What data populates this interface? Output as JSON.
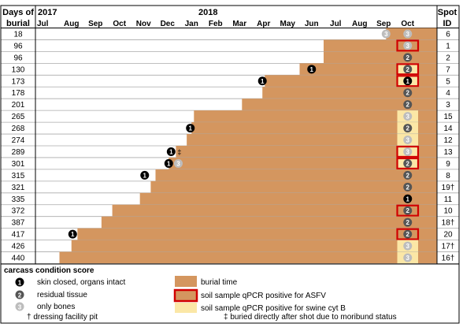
{
  "header": {
    "col1_line1": "Days of",
    "col1_line2": "burial",
    "year1": "2017",
    "year2": "2018",
    "spot_line1": "Spot",
    "spot_line2": "ID"
  },
  "months": [
    "Jul",
    "Aug",
    "Sep",
    "Oct",
    "Nov",
    "Dec",
    "Jan",
    "Feb",
    "Mar",
    "Apr",
    "May",
    "Jun",
    "Jul",
    "Aug",
    "Sep",
    "Oct"
  ],
  "chart_data": {
    "type": "table",
    "rows": [
      {
        "days": "18",
        "start": 14.6,
        "spot": "6",
        "scores": [
          {
            "v": 3,
            "m": 14.6
          }
        ],
        "oct": {
          "v": 3,
          "yellow": false,
          "red": false
        }
      },
      {
        "days": "96",
        "start": 12.0,
        "spot": "1",
        "scores": [],
        "oct": {
          "v": 3,
          "yellow": false,
          "red": true
        }
      },
      {
        "days": "96",
        "start": 12.0,
        "spot": "2",
        "scores": [],
        "oct": {
          "v": 2,
          "yellow": false,
          "red": false
        }
      },
      {
        "days": "130",
        "start": 11.0,
        "spot": "7",
        "scores": [
          {
            "v": 1,
            "m": 11.5
          }
        ],
        "oct": {
          "v": 2,
          "yellow": true,
          "red": true
        }
      },
      {
        "days": "173",
        "start": 9.55,
        "spot": "5",
        "scores": [
          {
            "v": 1,
            "m": 9.45
          }
        ],
        "oct": {
          "v": 1,
          "yellow": true,
          "red": true
        }
      },
      {
        "days": "178",
        "start": 9.45,
        "spot": "4",
        "scores": [],
        "oct": {
          "v": 2,
          "yellow": false,
          "red": false
        }
      },
      {
        "days": "201",
        "start": 8.6,
        "spot": "3",
        "scores": [],
        "oct": {
          "v": 2,
          "yellow": false,
          "red": false
        }
      },
      {
        "days": "265",
        "start": 6.6,
        "spot": "15",
        "scores": [],
        "oct": {
          "v": 3,
          "yellow": true,
          "red": false
        }
      },
      {
        "days": "268",
        "start": 6.5,
        "spot": "14",
        "scores": [
          {
            "v": 1,
            "m": 6.45
          }
        ],
        "oct": {
          "v": 2,
          "yellow": true,
          "red": false
        }
      },
      {
        "days": "274",
        "start": 6.3,
        "spot": "12",
        "scores": [],
        "oct": {
          "v": 3,
          "yellow": true,
          "red": false
        }
      },
      {
        "days": "289",
        "start": 5.85,
        "spot": "13",
        "scores": [
          {
            "v": 1,
            "m": 5.65,
            "mark": "‡"
          }
        ],
        "oct": {
          "v": 3,
          "yellow": true,
          "red": true
        }
      },
      {
        "days": "301",
        "start": 5.55,
        "spot": "9",
        "scores": [
          {
            "v": 1,
            "m": 5.55
          },
          {
            "v": 3,
            "m": 5.95
          }
        ],
        "oct": {
          "v": 2,
          "yellow": true,
          "red": true
        }
      },
      {
        "days": "315",
        "start": 5.0,
        "spot": "8",
        "scores": [
          {
            "v": 1,
            "m": 4.55
          }
        ],
        "oct": {
          "v": 2,
          "yellow": false,
          "red": false
        }
      },
      {
        "days": "321",
        "start": 4.8,
        "spot": "19†",
        "scores": [],
        "oct": {
          "v": 2,
          "yellow": false,
          "red": false
        }
      },
      {
        "days": "335",
        "start": 4.35,
        "spot": "11",
        "scores": [],
        "oct": {
          "v": 1,
          "yellow": false,
          "red": false
        }
      },
      {
        "days": "372",
        "start": 3.2,
        "spot": "10",
        "scores": [],
        "oct": {
          "v": 2,
          "yellow": false,
          "red": true
        }
      },
      {
        "days": "387",
        "start": 2.75,
        "spot": "18†",
        "scores": [],
        "oct": {
          "v": 2,
          "yellow": false,
          "red": false
        }
      },
      {
        "days": "417",
        "start": 1.75,
        "spot": "20",
        "scores": [
          {
            "v": 1,
            "m": 1.55
          }
        ],
        "oct": {
          "v": 2,
          "yellow": false,
          "red": true
        }
      },
      {
        "days": "426",
        "start": 1.5,
        "spot": "17†",
        "scores": [],
        "oct": {
          "v": 3,
          "yellow": true,
          "red": false
        }
      },
      {
        "days": "440",
        "start": 1.0,
        "spot": "16†",
        "scores": [],
        "oct": {
          "v": 3,
          "yellow": true,
          "red": false
        }
      }
    ]
  },
  "legend": {
    "title": "carcass condition score",
    "score1": "skin closed, organs intact",
    "score2": "residual tissue",
    "score3": "only bones",
    "burial": "burial time",
    "asfv": "soil sample qPCR positive for ASFV",
    "swine": "soil sample qPCR positive for swine cyt B",
    "dagger": "† dressing facility pit",
    "ddagger": "‡ buried directly after shot due to moribund status"
  },
  "colors": {
    "burial": "#d4965f",
    "yellow": "#fbe7a6",
    "red": "#d10000",
    "score1": "#000000",
    "score2": "#555555",
    "score3": "#bdbdbd"
  }
}
